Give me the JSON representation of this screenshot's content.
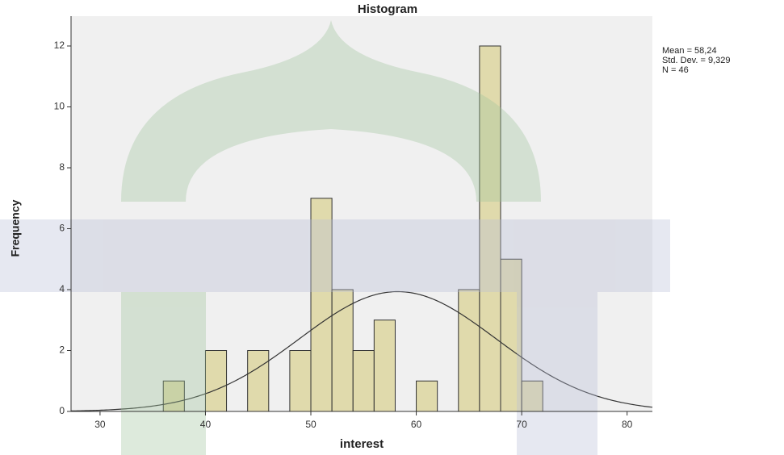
{
  "chart_data": {
    "type": "histogram",
    "title": "Histogram",
    "x_label": "interest",
    "y_label": "Frequency",
    "bins": [
      36,
      38,
      40,
      42,
      44,
      46,
      48,
      50,
      52,
      54,
      56,
      58,
      60,
      62,
      64,
      66,
      68,
      70,
      72
    ],
    "values": [
      1,
      0,
      2,
      0,
      2,
      0,
      2,
      7,
      4,
      2,
      3,
      0,
      1,
      0,
      4,
      12,
      5,
      1
    ],
    "color": "#ddd6a0",
    "edge_color": "#333333",
    "background": "#f0f0f0",
    "xlim": [
      27.25,
      82.4
    ],
    "ylim": [
      0,
      12.98
    ],
    "xticks": [
      30,
      40,
      50,
      60,
      70,
      80
    ],
    "yticks": [
      0,
      2,
      4,
      6,
      8,
      10,
      12
    ],
    "normal_curve": {
      "mean": 58.24,
      "std_dev": 9.329,
      "n": 46,
      "color": "#333333"
    },
    "annotations": [
      "Mean = 58,24",
      "Std. Dev. = 9,329",
      "N = 46"
    ]
  }
}
